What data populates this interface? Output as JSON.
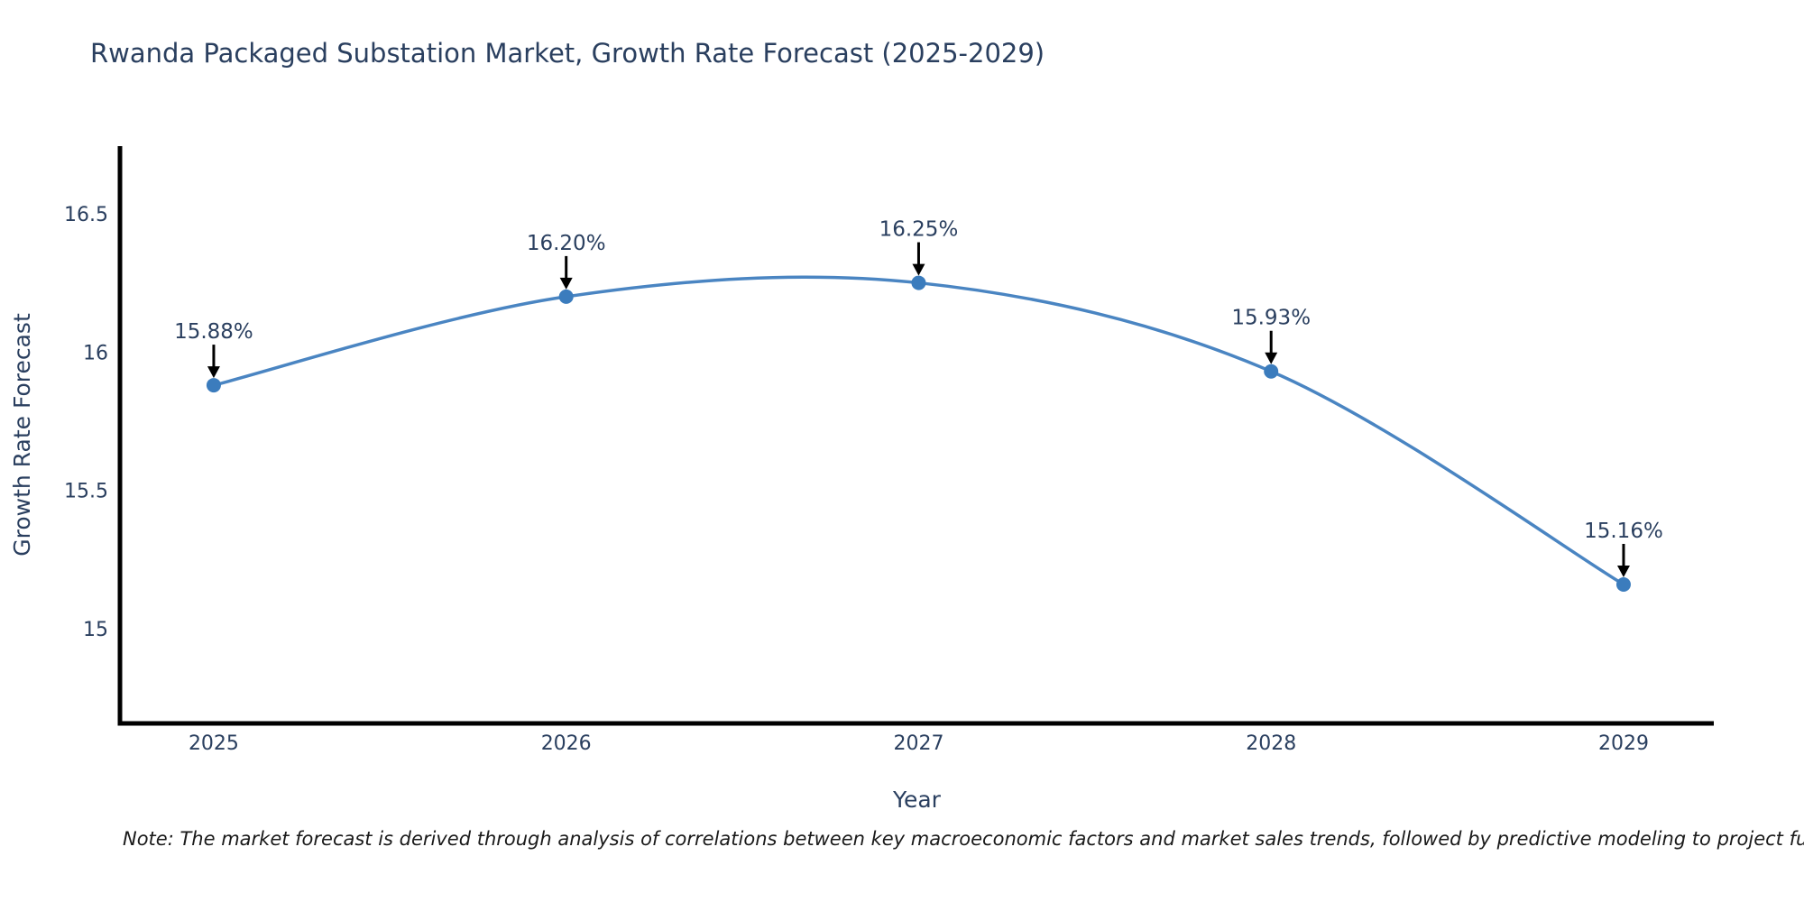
{
  "page": {
    "title": "Rwanda Packaged Substation Market, Growth Rate Forecast (2025-2029)",
    "note": "Note: The market forecast is derived through analysis of correlations between key macroeconomic factors and market sales trends, followed by predictive modeling to project future sales"
  },
  "chart_data": {
    "type": "line",
    "title": "Rwanda Packaged Substation Market, Growth Rate Forecast (2025-2029)",
    "xlabel": "Year",
    "ylabel": "Growth Rate Forecast",
    "x": [
      2025,
      2026,
      2027,
      2028,
      2029
    ],
    "xtick_labels": [
      "2025",
      "2026",
      "2027",
      "2028",
      "2029"
    ],
    "values": [
      15.88,
      16.2,
      16.25,
      15.93,
      15.16
    ],
    "point_labels": [
      "15.88%",
      "16.20%",
      "16.25%",
      "15.93%",
      "15.16%"
    ],
    "yticks": [
      15,
      15.5,
      16,
      16.5
    ],
    "ytick_labels": [
      "15",
      "15.5",
      "16",
      "16.5"
    ],
    "xlim": [
      2024.734,
      2029.256
    ],
    "ylim": [
      14.658,
      16.744
    ],
    "grid": false,
    "legend": false,
    "line_shape": "spline",
    "colors": {
      "line": "#4a85c2",
      "marker": "#3b7cbd",
      "text": "#2a3f5f",
      "axis": "#000000",
      "arrow": "#000000",
      "background": "#ffffff"
    }
  }
}
